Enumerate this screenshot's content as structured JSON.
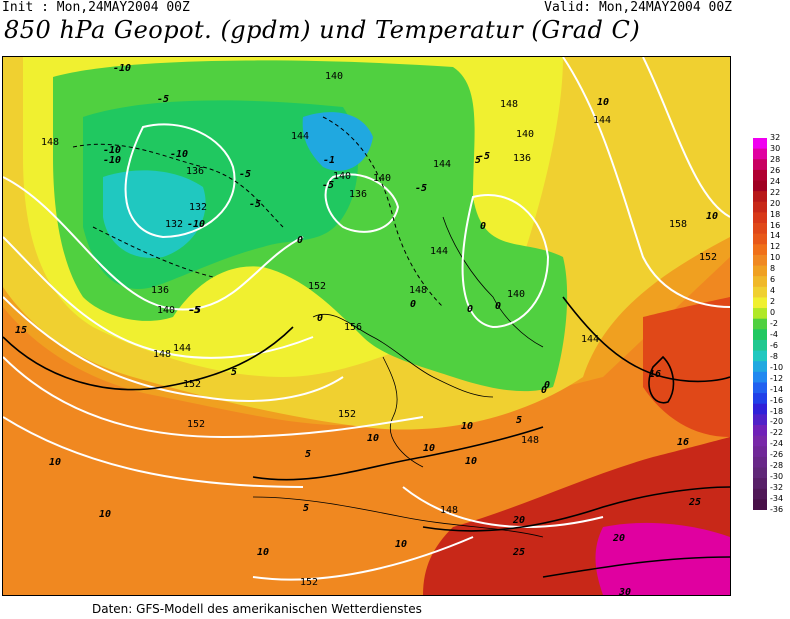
{
  "header": {
    "init": "Init : Mon,24MAY2004 00Z",
    "valid": "Valid: Mon,24MAY2004 00Z",
    "title": "850 hPa Geopot. (gpdm) und Temperatur (Grad C)"
  },
  "footer": "Daten: GFS-Modell des amerikanischen Wetterdienstes",
  "colorbar": {
    "labels": [
      "32",
      "30",
      "28",
      "26",
      "24",
      "22",
      "20",
      "18",
      "16",
      "14",
      "12",
      "10",
      "8",
      "6",
      "4",
      "2",
      "0",
      "-2",
      "-4",
      "-6",
      "-8",
      "-10",
      "-12",
      "-14",
      "-16",
      "-18",
      "-20",
      "-22",
      "-24",
      "-26",
      "-28",
      "-30",
      "-32",
      "-34",
      "-36"
    ],
    "colors": [
      "#f000f0",
      "#e000a0",
      "#c80060",
      "#b00030",
      "#a00020",
      "#b81818",
      "#c82818",
      "#d83818",
      "#e04818",
      "#e85818",
      "#f07018",
      "#f08820",
      "#f0a020",
      "#f0b828",
      "#f0d030",
      "#f0f030",
      "#b0e828",
      "#50d040",
      "#20c860",
      "#20c890",
      "#20c8c0",
      "#20a8e0",
      "#2088f0",
      "#2060f0",
      "#2040e8",
      "#3020d8",
      "#5020c8",
      "#7020b8",
      "#7828a8",
      "#702898",
      "#682888",
      "#602878",
      "#582068",
      "#501858",
      "#481048"
    ]
  },
  "map_labels": {
    "geopotential": [
      "140",
      "148",
      "144",
      "136",
      "132",
      "140",
      "144",
      "140",
      "136",
      "140",
      "144",
      "148",
      "140",
      "136",
      "144",
      "152",
      "156",
      "152",
      "152",
      "148",
      "148",
      "144",
      "148",
      "152",
      "148",
      "152",
      "136",
      "140",
      "132",
      "144",
      "158",
      "152"
    ],
    "temperature": [
      "-10",
      "-5",
      "-10",
      "-10",
      "-10",
      "-5",
      "-5",
      "-1",
      "-5",
      "-5",
      "-10",
      "-5",
      "-5",
      "0",
      "0",
      "0",
      "5",
      "5",
      "0",
      "5",
      "0",
      "5",
      "10",
      "15",
      "16",
      "16",
      "10",
      "10",
      "10",
      "10",
      "10",
      "5",
      "10",
      "20",
      "25",
      "20",
      "30",
      "25",
      "10",
      "0",
      "10",
      "0",
      "0",
      "-5",
      "10"
    ]
  },
  "colors": {
    "cold_fill": "#20c860",
    "cool_fill": "#50d040",
    "neutral_fill": "#f0f030",
    "warm_fill": "#f0b828",
    "hot_fill": "#f07018",
    "extreme_fill": "#c82818",
    "magenta_fill": "#e000a0"
  }
}
